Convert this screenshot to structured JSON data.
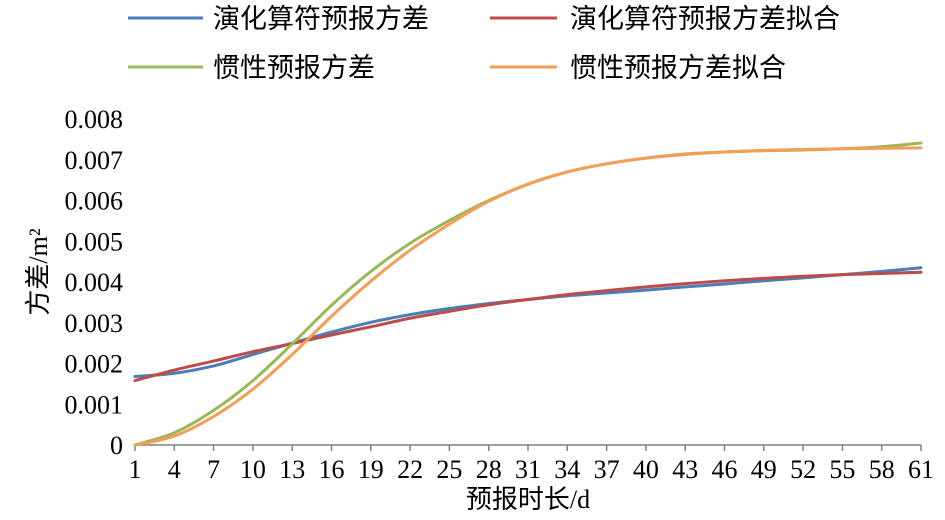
{
  "chart_data": {
    "type": "line",
    "xlabel": "预报时长/d",
    "ylabel": "方差/m²",
    "xlim": [
      1,
      61
    ],
    "ylim": [
      0,
      0.008
    ],
    "xticks": [
      1,
      4,
      7,
      10,
      13,
      16,
      19,
      22,
      25,
      28,
      31,
      34,
      37,
      40,
      43,
      46,
      49,
      52,
      55,
      58,
      61
    ],
    "yticks": [
      0,
      0.001,
      0.002,
      0.003,
      0.004,
      0.005,
      0.006,
      0.007,
      0.008
    ],
    "grid": false,
    "legend_position": "top",
    "x": [
      1,
      4,
      7,
      10,
      13,
      16,
      19,
      22,
      25,
      28,
      31,
      34,
      37,
      40,
      43,
      46,
      49,
      52,
      55,
      58,
      61
    ],
    "series": [
      {
        "name": "演化算符预报方差",
        "color": "#4A7EBB",
        "values": [
          0.00168,
          0.00176,
          0.00194,
          0.00222,
          0.0025,
          0.00277,
          0.00301,
          0.0032,
          0.00335,
          0.00347,
          0.00357,
          0.00366,
          0.00373,
          0.0038,
          0.00388,
          0.00395,
          0.00403,
          0.0041,
          0.00418,
          0.00426,
          0.00435
        ]
      },
      {
        "name": "演化算符预报方差拟合",
        "color": "#BE4B48",
        "values": [
          0.00158,
          0.00184,
          0.00206,
          0.00229,
          0.00249,
          0.0027,
          0.0029,
          0.00311,
          0.00328,
          0.00344,
          0.00357,
          0.00369,
          0.00379,
          0.00388,
          0.00396,
          0.00403,
          0.00409,
          0.00414,
          0.00418,
          0.00421,
          0.00424
        ]
      },
      {
        "name": "惯性预报方差",
        "color": "#98B954",
        "values": [
          0,
          0.0003,
          0.00085,
          0.00158,
          0.00248,
          0.00343,
          0.00426,
          0.00495,
          0.00551,
          0.006,
          0.0064,
          0.0067,
          0.0069,
          0.00704,
          0.00714,
          0.00719,
          0.00722,
          0.00724,
          0.00727,
          0.00732,
          0.00741
        ]
      },
      {
        "name": "惯性预报方差拟合",
        "color": "#F59D56",
        "values": [
          0,
          0.00022,
          0.0007,
          0.00137,
          0.00222,
          0.00316,
          0.00402,
          0.00478,
          0.00542,
          0.00598,
          0.0064,
          0.0067,
          0.0069,
          0.00704,
          0.00713,
          0.00719,
          0.00723,
          0.00725,
          0.00727,
          0.00728,
          0.00729
        ]
      }
    ]
  }
}
